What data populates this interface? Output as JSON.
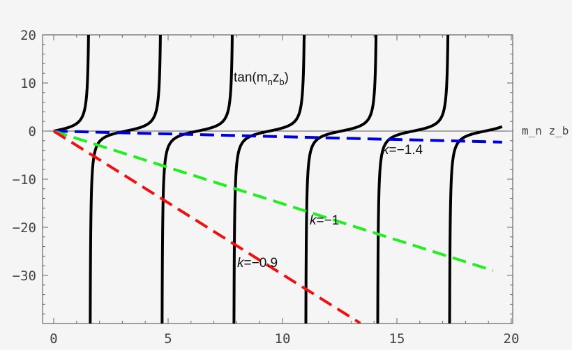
{
  "chart_data": {
    "type": "line",
    "title": "",
    "xlabel": "m_n z_b",
    "ylabel": "",
    "xlim": [
      -0.5,
      20
    ],
    "ylim": [
      -40,
      20
    ],
    "grid": false,
    "x_ticks": [
      "0",
      "5",
      "10",
      "15",
      "20"
    ],
    "y_ticks": [
      "20",
      "10",
      "0",
      "−10",
      "−20",
      "−30"
    ],
    "series": [
      {
        "name": "tan(m_n z_b)",
        "function": "tan(x)",
        "x_range": [
          0,
          19.6
        ],
        "color": "#000000",
        "style": "solid"
      },
      {
        "name": "k=−1.4",
        "slope": -0.117,
        "x_range": [
          0,
          19.6
        ],
        "color": "#0000dd",
        "style": "dashed"
      },
      {
        "name": "k=−1",
        "slope": -1.51,
        "x_range": [
          0,
          19.2
        ],
        "color": "#22ee22",
        "style": "dashed"
      },
      {
        "name": "k=−0.9",
        "slope": -2.98,
        "x_range": [
          0,
          13.4
        ],
        "color": "#ee1111",
        "style": "dashed"
      }
    ]
  }
}
